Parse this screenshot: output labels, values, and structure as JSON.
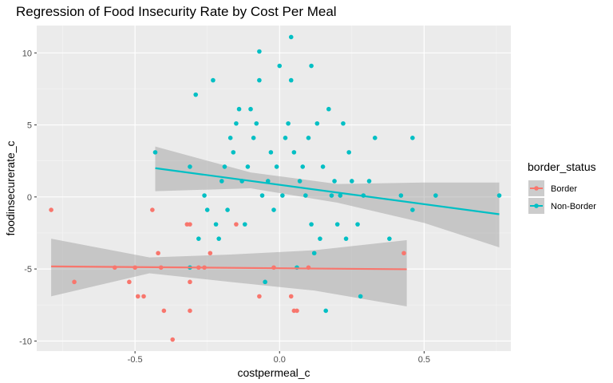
{
  "chart_data": {
    "type": "scatter",
    "title": "Regression of Food Insecurity Rate by Cost Per Meal",
    "xlabel": "costpermeal_c",
    "ylabel": "foodinsecurerate_c",
    "xlim": [
      -0.84,
      0.8
    ],
    "ylim": [
      -10.7,
      11.9
    ],
    "x_ticks": [
      -0.5,
      0.0,
      0.5
    ],
    "x_tick_labels": [
      "-0.5",
      "0.0",
      "0.5"
    ],
    "y_ticks": [
      -10,
      -5,
      0,
      5,
      10
    ],
    "y_tick_labels": [
      "-10",
      "-5",
      "0",
      "5",
      "10"
    ],
    "grid": true,
    "legend": {
      "title": "border_status",
      "position": "right",
      "entries": [
        "Border",
        "Non-Border"
      ]
    },
    "series": [
      {
        "name": "Border",
        "color": "#F8766D",
        "points": [
          [
            -0.79,
            -0.9
          ],
          [
            -0.71,
            -5.9
          ],
          [
            -0.57,
            -4.9
          ],
          [
            -0.52,
            -5.9
          ],
          [
            -0.5,
            -4.9
          ],
          [
            -0.49,
            -6.9
          ],
          [
            -0.47,
            -6.9
          ],
          [
            -0.44,
            -0.9
          ],
          [
            -0.42,
            -3.9
          ],
          [
            -0.41,
            -4.9
          ],
          [
            -0.4,
            -7.9
          ],
          [
            -0.37,
            -9.9
          ],
          [
            -0.32,
            -1.9
          ],
          [
            -0.31,
            -1.9
          ],
          [
            -0.31,
            -5.9
          ],
          [
            -0.31,
            -7.9
          ],
          [
            -0.28,
            -4.9
          ],
          [
            -0.26,
            -4.9
          ],
          [
            -0.24,
            -3.9
          ],
          [
            -0.15,
            -1.9
          ],
          [
            -0.07,
            -6.9
          ],
          [
            -0.02,
            -4.9
          ],
          [
            0.04,
            -6.9
          ],
          [
            0.05,
            -7.9
          ],
          [
            0.06,
            -7.9
          ],
          [
            0.1,
            -4.9
          ],
          [
            0.43,
            -3.9
          ]
        ],
        "regression": {
          "x": [
            -0.79,
            0.44
          ],
          "y": [
            -4.82,
            -5.02
          ]
        },
        "ci_upper": [
          -2.9,
          -4.2,
          -4.0,
          -3.7,
          -3.0
        ],
        "ci_lower": [
          -6.9,
          -5.3,
          -5.9,
          -6.5,
          -7.6
        ],
        "ci_x": [
          -0.79,
          -0.45,
          -0.17,
          0.12,
          0.44
        ]
      },
      {
        "name": "Non-Border",
        "color": "#00BFC4",
        "points": [
          [
            -0.43,
            3.1
          ],
          [
            -0.31,
            2.1
          ],
          [
            -0.31,
            -4.9
          ],
          [
            -0.29,
            7.1
          ],
          [
            -0.28,
            -2.9
          ],
          [
            -0.26,
            0.1
          ],
          [
            -0.25,
            -0.9
          ],
          [
            -0.23,
            8.1
          ],
          [
            -0.22,
            -1.9
          ],
          [
            -0.21,
            -2.9
          ],
          [
            -0.2,
            1.1
          ],
          [
            -0.19,
            2.1
          ],
          [
            -0.18,
            -0.9
          ],
          [
            -0.17,
            4.1
          ],
          [
            -0.16,
            3.1
          ],
          [
            -0.15,
            5.1
          ],
          [
            -0.14,
            6.1
          ],
          [
            -0.13,
            1.1
          ],
          [
            -0.12,
            -1.9
          ],
          [
            -0.11,
            2.1
          ],
          [
            -0.1,
            6.1
          ],
          [
            -0.09,
            4.1
          ],
          [
            -0.08,
            5.1
          ],
          [
            -0.07,
            10.1
          ],
          [
            -0.07,
            8.1
          ],
          [
            -0.06,
            0.1
          ],
          [
            -0.05,
            -5.9
          ],
          [
            -0.04,
            1.1
          ],
          [
            -0.03,
            3.1
          ],
          [
            -0.02,
            -0.9
          ],
          [
            -0.01,
            2.1
          ],
          [
            0.0,
            9.1
          ],
          [
            0.01,
            0.1
          ],
          [
            0.02,
            4.1
          ],
          [
            0.03,
            5.1
          ],
          [
            0.04,
            11.1
          ],
          [
            0.04,
            8.1
          ],
          [
            0.05,
            3.1
          ],
          [
            0.06,
            -4.9
          ],
          [
            0.07,
            1.1
          ],
          [
            0.08,
            2.1
          ],
          [
            0.09,
            0.1
          ],
          [
            0.1,
            4.1
          ],
          [
            0.11,
            9.1
          ],
          [
            0.11,
            -1.9
          ],
          [
            0.12,
            -3.9
          ],
          [
            0.13,
            5.1
          ],
          [
            0.14,
            -2.9
          ],
          [
            0.15,
            2.1
          ],
          [
            0.16,
            -7.9
          ],
          [
            0.17,
            6.1
          ],
          [
            0.18,
            0.1
          ],
          [
            0.19,
            1.1
          ],
          [
            0.2,
            -1.9
          ],
          [
            0.21,
            0.1
          ],
          [
            0.22,
            5.1
          ],
          [
            0.23,
            -2.9
          ],
          [
            0.24,
            3.1
          ],
          [
            0.25,
            1.1
          ],
          [
            0.27,
            -1.9
          ],
          [
            0.28,
            -6.9
          ],
          [
            0.29,
            0.1
          ],
          [
            0.31,
            1.1
          ],
          [
            0.33,
            4.1
          ],
          [
            0.38,
            -2.9
          ],
          [
            0.42,
            0.1
          ],
          [
            0.46,
            4.1
          ],
          [
            0.46,
            -0.9
          ],
          [
            0.54,
            0.1
          ],
          [
            0.76,
            0.1
          ]
        ],
        "regression": {
          "x": [
            -0.43,
            0.76
          ],
          "y": [
            2.0,
            -1.2
          ]
        },
        "ci_upper": [
          3.5,
          1.7,
          0.9,
          1.0,
          1.0
        ],
        "ci_lower": [
          0.4,
          0.6,
          -0.4,
          -1.8,
          -3.5
        ],
        "ci_x": [
          -0.43,
          -0.1,
          0.2,
          0.5,
          0.76
        ]
      }
    ]
  }
}
